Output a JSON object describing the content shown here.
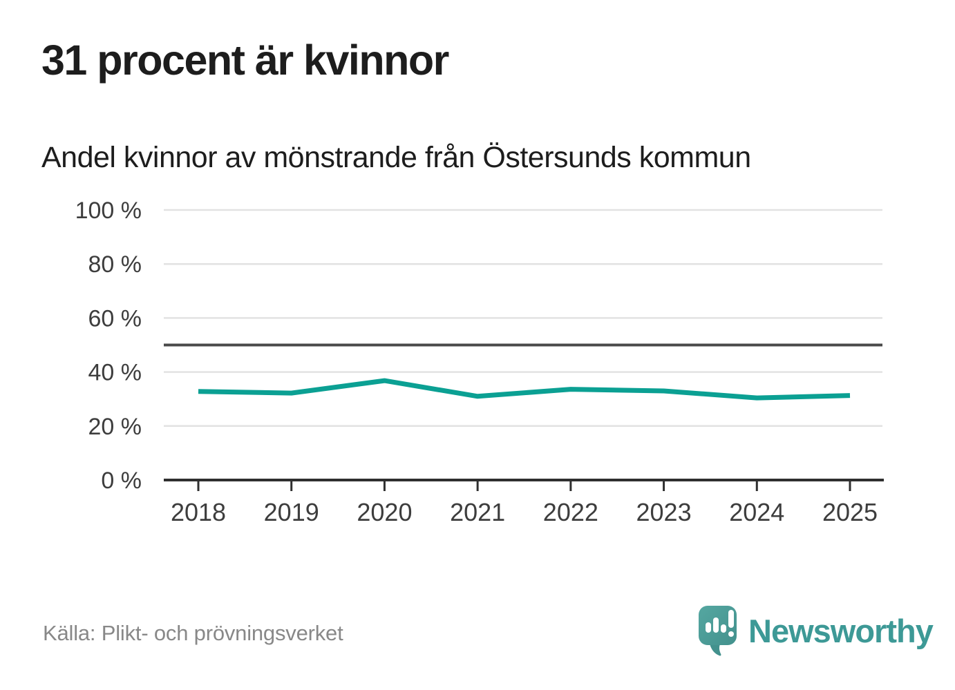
{
  "header": {
    "title": "31 procent är kvinnor",
    "subtitle": "Andel kvinnor av mönstrande från Östersunds kommun"
  },
  "chart_data": {
    "type": "line",
    "title": "31 procent är kvinnor",
    "subtitle": "Andel kvinnor av mönstrande från Östersunds kommun",
    "categories": [
      "2018",
      "2019",
      "2020",
      "2021",
      "2022",
      "2023",
      "2024",
      "2025"
    ],
    "series": [
      {
        "name": "Andel kvinnor av mönstrande",
        "values": [
          32.8,
          32.2,
          36.8,
          31.0,
          33.6,
          33.0,
          30.4,
          31.3
        ]
      }
    ],
    "unit": "%",
    "xlabel": "",
    "ylabel": "",
    "ylim": [
      0,
      100
    ],
    "y_ticks": [
      0,
      20,
      40,
      60,
      80,
      100
    ],
    "y_tick_labels": [
      "0 %",
      "20 %",
      "40 %",
      "60 %",
      "80 %",
      "100 %"
    ],
    "reference_line": 50,
    "grid": "horizontal",
    "legend": "none",
    "colors": {
      "line": "#0ba093",
      "reference": "#4a4a4a",
      "axis": "#2f2f2f",
      "grid": "#e2e2e2",
      "tick_text": "#3d3d3d"
    }
  },
  "footer": {
    "source": "Källa: Plikt- och prövningsverket",
    "brand": "Newsworthy"
  },
  "icons": {
    "brand_logo": "newsworthy-speech-bubble-bar-chart-icon",
    "brand_colors": {
      "icon": "#4a9e99",
      "icon_dark": "#43918d",
      "text": "#3d9996"
    }
  }
}
